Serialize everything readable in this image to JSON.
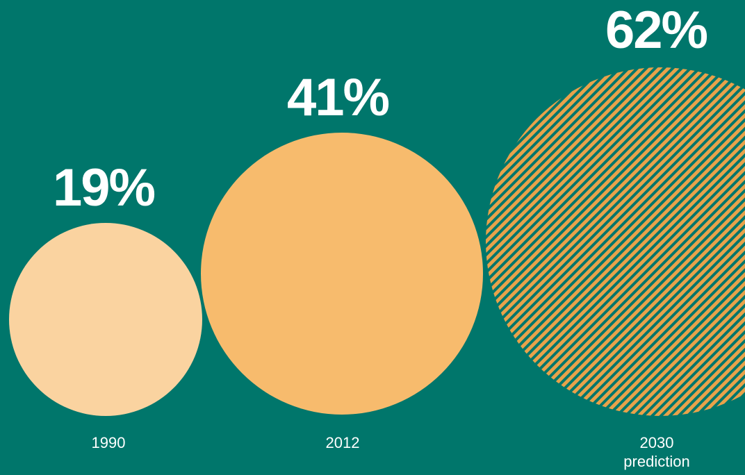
{
  "colors": {
    "background": "#00766b",
    "bubble_1990": "#fad3a0",
    "bubble_2012": "#f7bb6d",
    "bubble_2030_stripe": "#e8a24a",
    "text": "#ffffff"
  },
  "chart_data": {
    "type": "bubble",
    "title": "",
    "series": [
      {
        "category": "1990",
        "sublabel": "",
        "value": 19,
        "label": "19%",
        "fill": "solid"
      },
      {
        "category": "2012",
        "sublabel": "",
        "value": 41,
        "label": "41%",
        "fill": "solid"
      },
      {
        "category": "2030",
        "sublabel": "prediction",
        "value": 62,
        "label": "62%",
        "fill": "hatched"
      }
    ]
  }
}
